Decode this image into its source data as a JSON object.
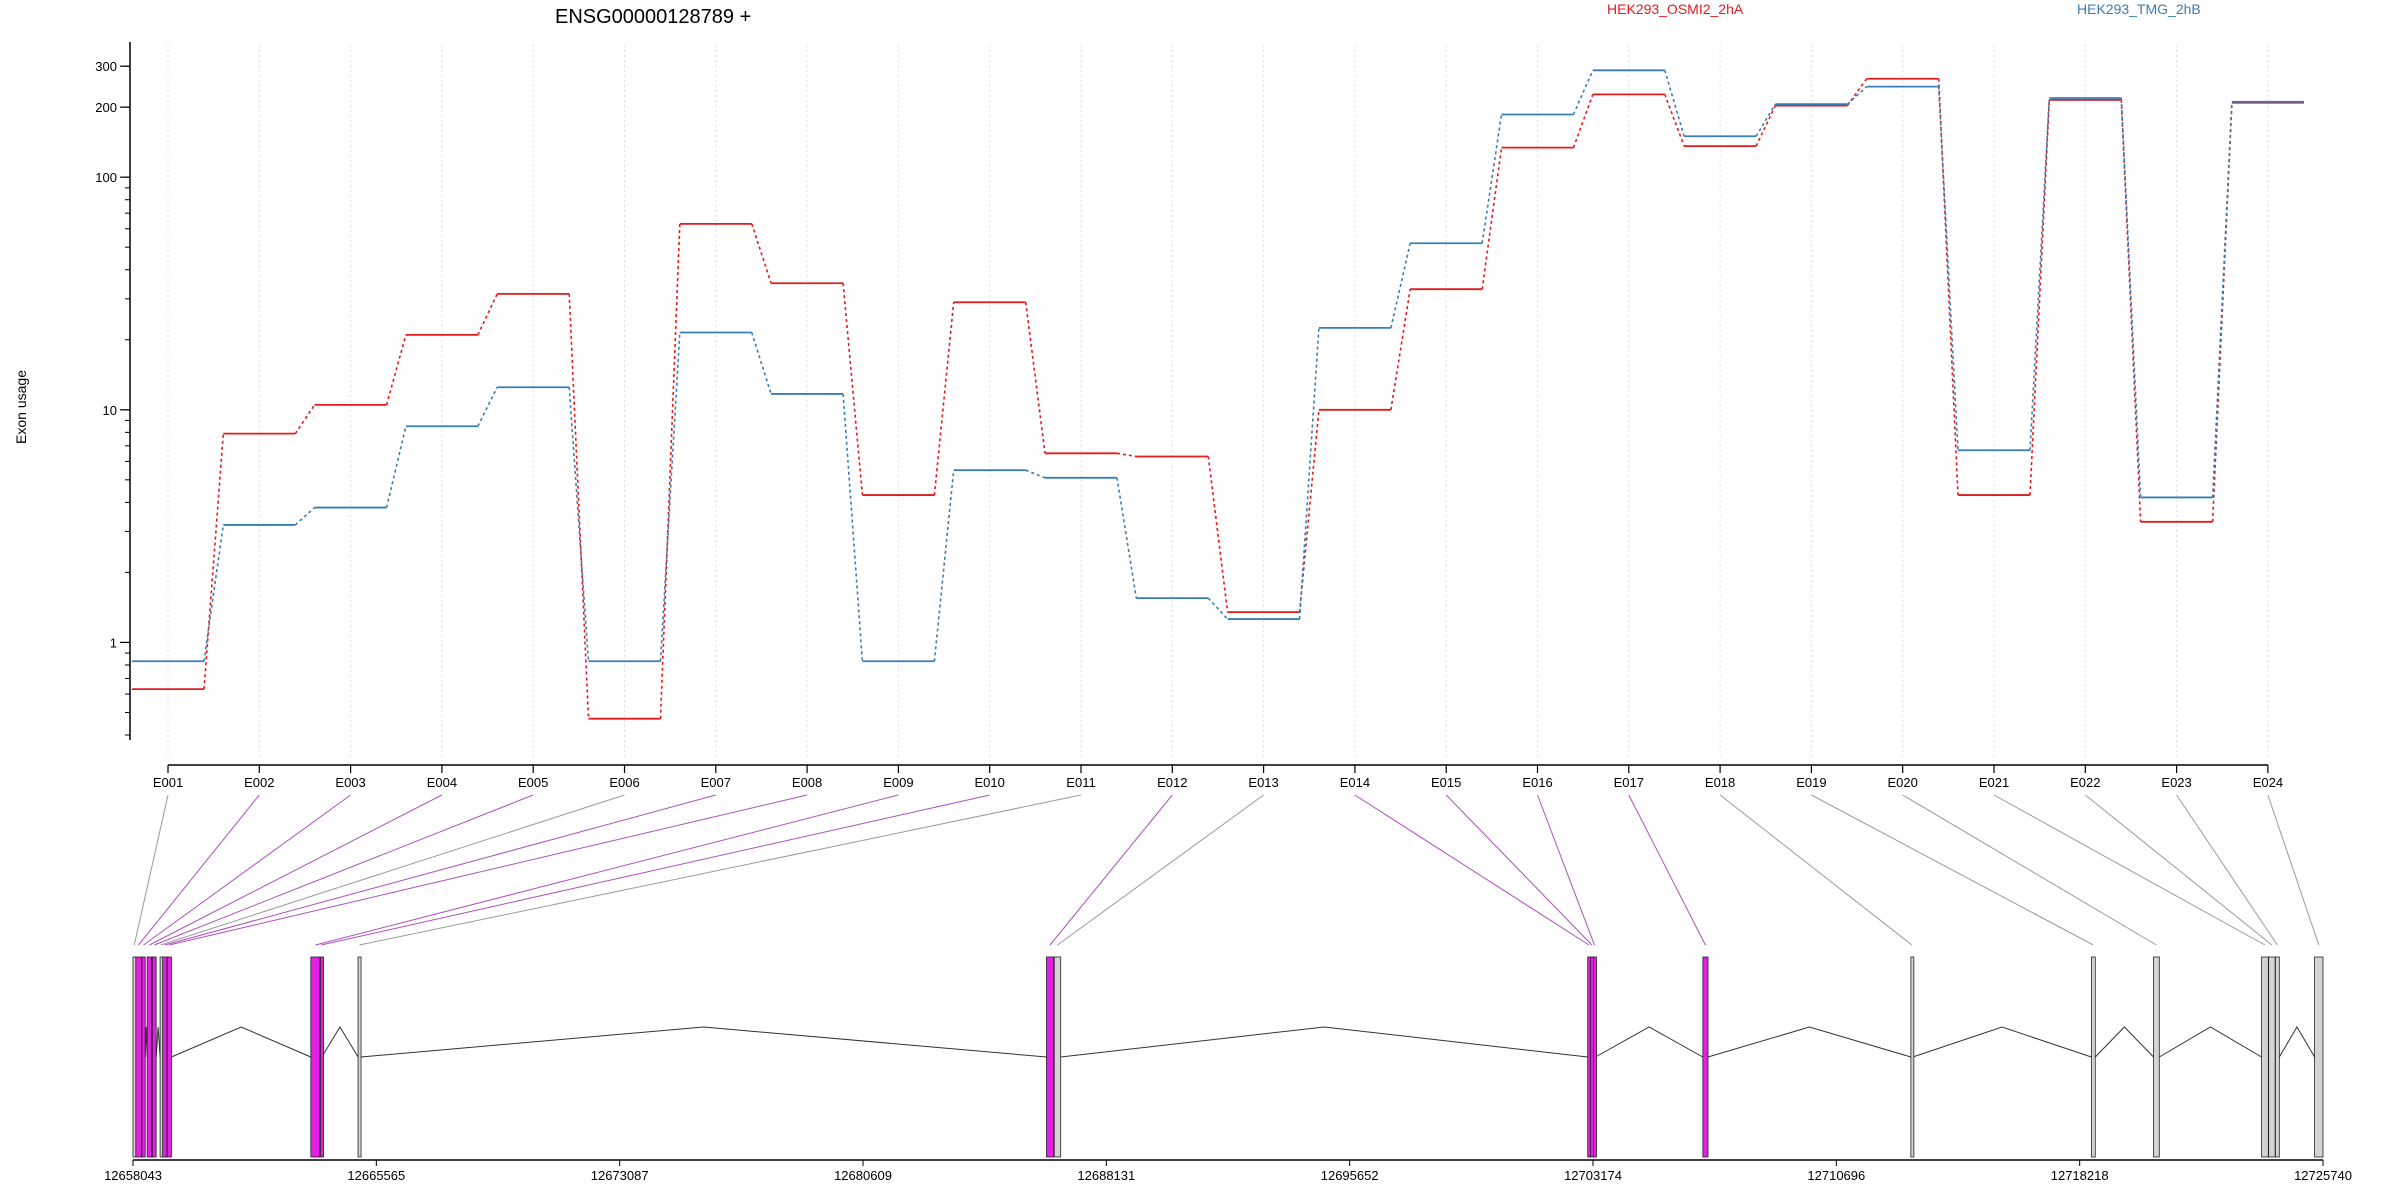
{
  "chart_data": {
    "type": "line",
    "title": "ENSG00000128789 +",
    "ylabel": "Exon usage",
    "yscale": "log",
    "ylim": [
      0.4,
      370
    ],
    "y_ticks": [
      1,
      10,
      100,
      200,
      300
    ],
    "grid": "vertical dotted lines at each exon",
    "legend_placement": "top-right",
    "categories": [
      "E001",
      "E002",
      "E003",
      "E004",
      "E005",
      "E006",
      "E007",
      "E008",
      "E009",
      "E010",
      "E011",
      "E012",
      "E013",
      "E014",
      "E015",
      "E016",
      "E017",
      "E018",
      "E019",
      "E020",
      "E021",
      "E022",
      "E023",
      "E024"
    ],
    "series": [
      {
        "name": "HEK293_OSMI2_2hA",
        "color": "#e41a1c",
        "values": [
          0.63,
          7.9,
          10.5,
          21,
          31.5,
          0.47,
          63,
          35,
          4.3,
          29,
          6.5,
          6.3,
          1.35,
          10,
          33,
          134,
          227,
          136,
          203,
          265,
          4.3,
          215,
          3.3,
          209
        ]
      },
      {
        "name": "HEK293_TMG_2hB",
        "color": "#377eb8",
        "values": [
          0.83,
          3.2,
          3.8,
          8.5,
          12.5,
          0.83,
          21.5,
          11.7,
          0.83,
          5.5,
          5.1,
          1.55,
          1.26,
          22.5,
          52,
          186,
          288,
          150,
          206,
          245,
          6.7,
          219,
          4.2,
          211
        ]
      }
    ],
    "gene_model": {
      "coordinate_ticks": [
        "12658043",
        "12665565",
        "12673087",
        "12680609",
        "12688131",
        "12695652",
        "12703174",
        "12710696",
        "12718218",
        "12725740"
      ],
      "x_range": [
        12658043,
        12725740
      ],
      "exons": [
        {
          "id": "E001",
          "start": 12658043,
          "end": 12658120,
          "significant": false
        },
        {
          "id": "E002",
          "start": 12658130,
          "end": 12658300,
          "significant": true
        },
        {
          "id": "E003",
          "start": 12658320,
          "end": 12658420,
          "significant": true
        },
        {
          "id": "E004",
          "start": 12658480,
          "end": 12658620,
          "significant": true
        },
        {
          "id": "E005",
          "start": 12658640,
          "end": 12658760,
          "significant": true
        },
        {
          "id": "E006",
          "start": 12658880,
          "end": 12658920,
          "significant": false
        },
        {
          "id": "E007",
          "start": 12658960,
          "end": 12659090,
          "significant": true
        },
        {
          "id": "E008",
          "start": 12659100,
          "end": 12659230,
          "significant": true
        },
        {
          "id": "E009",
          "start": 12663540,
          "end": 12663820,
          "significant": true
        },
        {
          "id": "E010",
          "start": 12663840,
          "end": 12663880,
          "significant": true
        },
        {
          "id": "E011",
          "start": 12665000,
          "end": 12665080,
          "significant": false
        },
        {
          "id": "E012",
          "start": 12686280,
          "end": 12686500,
          "significant": true
        },
        {
          "id": "E013",
          "start": 12686520,
          "end": 12686720,
          "significant": false
        },
        {
          "id": "E014",
          "start": 12703010,
          "end": 12703090,
          "significant": true
        },
        {
          "id": "E015",
          "start": 12703100,
          "end": 12703180,
          "significant": true
        },
        {
          "id": "E016",
          "start": 12703190,
          "end": 12703250,
          "significant": true
        },
        {
          "id": "E017",
          "start": 12706570,
          "end": 12706730,
          "significant": true
        },
        {
          "id": "E018",
          "start": 12713000,
          "end": 12713060,
          "significant": false
        },
        {
          "id": "E019",
          "start": 12718580,
          "end": 12718700,
          "significant": false
        },
        {
          "id": "E020",
          "start": 12720500,
          "end": 12720680,
          "significant": false
        },
        {
          "id": "E021",
          "start": 12723840,
          "end": 12724050,
          "significant": false
        },
        {
          "id": "E022",
          "start": 12724060,
          "end": 12724260,
          "significant": false
        },
        {
          "id": "E023",
          "start": 12724270,
          "end": 12724390,
          "significant": false
        },
        {
          "id": "E024",
          "start": 12725480,
          "end": 12725740,
          "significant": false
        }
      ]
    }
  },
  "colors": {
    "series_a": "#e41a1c",
    "series_b": "#377eb8",
    "significant_exon": "#e61ee6",
    "normal_exon": "#d3d3d3",
    "significant_link": "#b04fc0",
    "normal_link": "#9a9a9a",
    "grid": "#dcdce8"
  }
}
